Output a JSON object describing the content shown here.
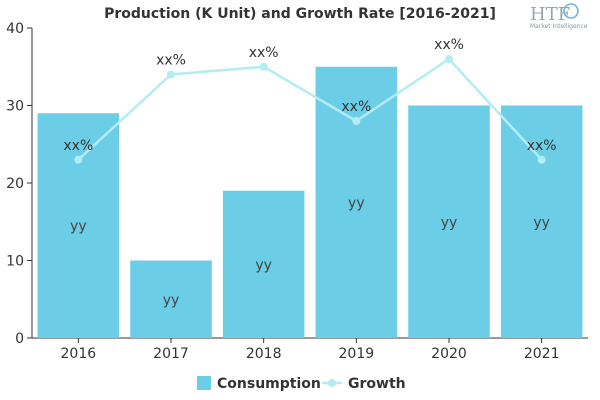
{
  "chart_data": {
    "type": "bar",
    "title": "Production (K Unit) and Growth Rate [2016-2021]",
    "categories": [
      "2016",
      "2017",
      "2018",
      "2019",
      "2020",
      "2021"
    ],
    "series": [
      {
        "name": "Consumption",
        "kind": "bar",
        "values": [
          29,
          10,
          19,
          35,
          30,
          30
        ],
        "labels": [
          "yy",
          "yy",
          "yy",
          "yy",
          "yy",
          "yy"
        ],
        "color": "#6ccde7"
      },
      {
        "name": "Growth",
        "kind": "line",
        "values": [
          23,
          34,
          35,
          28,
          36,
          23
        ],
        "labels": [
          "xx%",
          "xx%",
          "xx%",
          "xx%",
          "xx%",
          "xx%"
        ],
        "color": "#b3ecf3"
      }
    ],
    "y_ticks": [
      0,
      10,
      20,
      30,
      40
    ],
    "ylim": [
      0,
      40
    ],
    "grid": false,
    "legend_position": "bottom-center"
  },
  "logo": {
    "main": "HTF",
    "sub": "Market Intelligence"
  }
}
